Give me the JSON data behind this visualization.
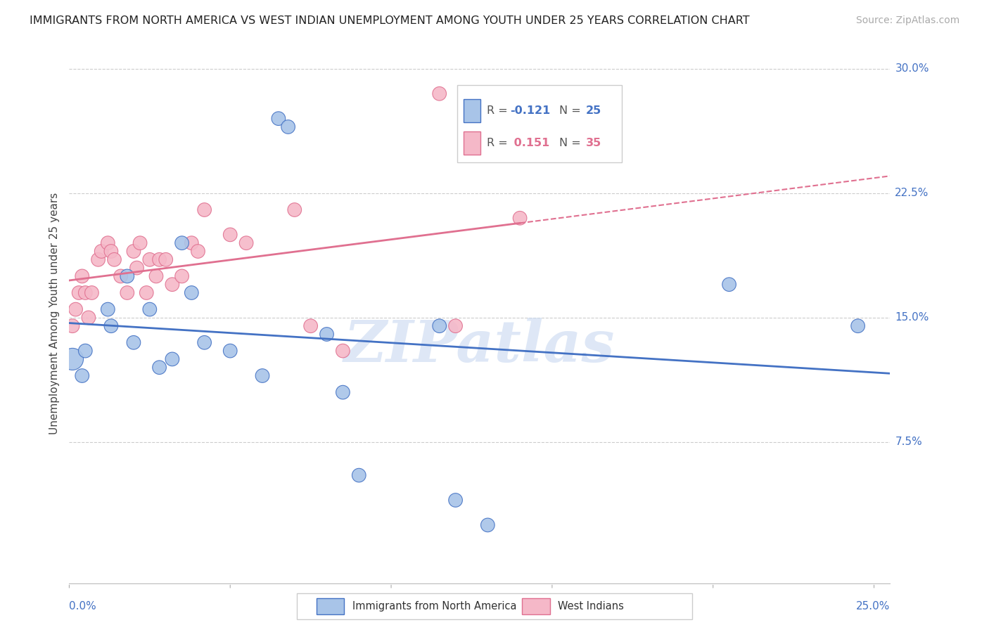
{
  "title": "IMMIGRANTS FROM NORTH AMERICA VS WEST INDIAN UNEMPLOYMENT AMONG YOUTH UNDER 25 YEARS CORRELATION CHART",
  "source": "Source: ZipAtlas.com",
  "ylabel": "Unemployment Among Youth under 25 years",
  "xlim": [
    0.0,
    0.255
  ],
  "ylim": [
    -0.01,
    0.315
  ],
  "blue_color": "#a8c4e8",
  "pink_color": "#f5b8c8",
  "blue_line_color": "#4472c4",
  "pink_line_color": "#e07090",
  "watermark_text": "ZIPatlas",
  "watermark_color": "#c8d8f0",
  "grid_color": "#cccccc",
  "bg_color": "#ffffff",
  "tick_color": "#4472c4",
  "title_fontsize": 11.5,
  "source_fontsize": 10,
  "ylabel_fontsize": 11,
  "tick_label_fontsize": 11,
  "legend_fontsize": 12,
  "y_ticks": [
    0.075,
    0.15,
    0.225,
    0.3
  ],
  "y_tick_labels": [
    "7.5%",
    "15.0%",
    "22.5%",
    "30.0%"
  ],
  "north_america_x": [
    0.001,
    0.004,
    0.005,
    0.012,
    0.013,
    0.018,
    0.02,
    0.025,
    0.028,
    0.032,
    0.035,
    0.038,
    0.042,
    0.05,
    0.06,
    0.065,
    0.068,
    0.08,
    0.085,
    0.09,
    0.115,
    0.12,
    0.13,
    0.205,
    0.245
  ],
  "north_america_y": [
    0.125,
    0.115,
    0.13,
    0.155,
    0.145,
    0.175,
    0.135,
    0.155,
    0.12,
    0.125,
    0.195,
    0.165,
    0.135,
    0.13,
    0.115,
    0.27,
    0.265,
    0.14,
    0.105,
    0.055,
    0.145,
    0.04,
    0.025,
    0.17,
    0.145
  ],
  "north_america_size": [
    500,
    200,
    200,
    200,
    200,
    200,
    200,
    200,
    200,
    200,
    200,
    200,
    200,
    200,
    200,
    200,
    200,
    200,
    200,
    200,
    200,
    200,
    200,
    200,
    200
  ],
  "west_indian_x": [
    0.001,
    0.002,
    0.003,
    0.004,
    0.005,
    0.006,
    0.007,
    0.009,
    0.01,
    0.012,
    0.013,
    0.014,
    0.016,
    0.018,
    0.02,
    0.021,
    0.022,
    0.024,
    0.025,
    0.027,
    0.028,
    0.03,
    0.032,
    0.035,
    0.038,
    0.04,
    0.042,
    0.05,
    0.055,
    0.07,
    0.075,
    0.085,
    0.115,
    0.12,
    0.14
  ],
  "west_indian_y": [
    0.145,
    0.155,
    0.165,
    0.175,
    0.165,
    0.15,
    0.165,
    0.185,
    0.19,
    0.195,
    0.19,
    0.185,
    0.175,
    0.165,
    0.19,
    0.18,
    0.195,
    0.165,
    0.185,
    0.175,
    0.185,
    0.185,
    0.17,
    0.175,
    0.195,
    0.19,
    0.215,
    0.2,
    0.195,
    0.215,
    0.145,
    0.13,
    0.285,
    0.145,
    0.21
  ],
  "west_indian_size": [
    200,
    200,
    200,
    200,
    200,
    200,
    200,
    200,
    200,
    200,
    200,
    200,
    200,
    200,
    200,
    200,
    200,
    200,
    200,
    200,
    200,
    200,
    200,
    200,
    200,
    200,
    200,
    200,
    200,
    200,
    200,
    200,
    200,
    200,
    200
  ],
  "r_blue": -0.121,
  "n_blue": 25,
  "r_pink": 0.151,
  "n_pink": 35
}
